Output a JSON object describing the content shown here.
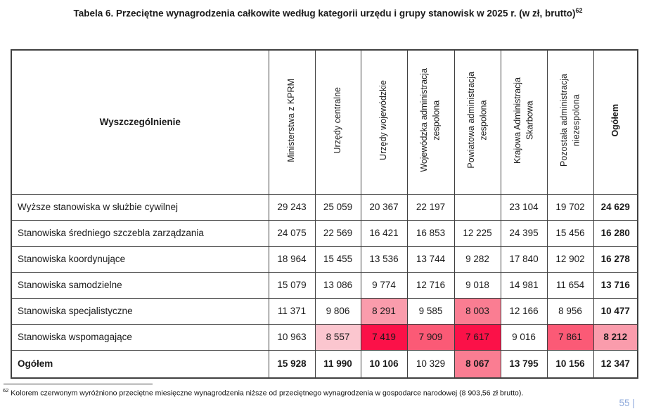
{
  "title": {
    "text": "Tabela 6. Przeciętne wynagrodzenia całkowite według kategorii urzędu i grupy stanowisk w 2025 r. (w zł, brutto)",
    "footnote_ref": "62"
  },
  "table": {
    "corner_label": "Wyszczególnienie",
    "columns": [
      {
        "label": "Ministerstwa z KPRM",
        "bold": false
      },
      {
        "label": "Urzędy centralne",
        "bold": false
      },
      {
        "label": "Urzędy wojewódzkie",
        "bold": false
      },
      {
        "label": "Wojewódzka administracja\nzespolona",
        "bold": false
      },
      {
        "label": "Powiatowa administracja\nzespolona",
        "bold": false
      },
      {
        "label": "Krajowa Administracja\nSkarbowa",
        "bold": false
      },
      {
        "label": "Pozostała administracja\nniezespolona",
        "bold": false
      },
      {
        "label": "Ogółem",
        "bold": true
      }
    ],
    "rows": [
      {
        "label": "Wyższe stanowiska w służbie cywilnej",
        "bold": false,
        "total_row": false,
        "cells": [
          {
            "v": "29 243"
          },
          {
            "v": "25 059"
          },
          {
            "v": "20 367"
          },
          {
            "v": "22 197"
          },
          {
            "v": ""
          },
          {
            "v": "23 104"
          },
          {
            "v": "19 702"
          },
          {
            "v": "24 629",
            "bold": true
          }
        ]
      },
      {
        "label": "Stanowiska średniego szczebla zarządzania",
        "bold": false,
        "total_row": false,
        "cells": [
          {
            "v": "24 075"
          },
          {
            "v": "22 569"
          },
          {
            "v": "16 421"
          },
          {
            "v": "16 853"
          },
          {
            "v": "12 225"
          },
          {
            "v": "24 395"
          },
          {
            "v": "15 456"
          },
          {
            "v": "16 280",
            "bold": true
          }
        ]
      },
      {
        "label": "Stanowiska koordynujące",
        "bold": false,
        "total_row": false,
        "cells": [
          {
            "v": "18 964"
          },
          {
            "v": "15 455"
          },
          {
            "v": "13 536"
          },
          {
            "v": "13 744"
          },
          {
            "v": "9 282"
          },
          {
            "v": "17 840"
          },
          {
            "v": "12 902"
          },
          {
            "v": "16 278",
            "bold": true
          }
        ]
      },
      {
        "label": "Stanowiska samodzielne",
        "bold": false,
        "total_row": false,
        "cells": [
          {
            "v": "15 079"
          },
          {
            "v": "13 086"
          },
          {
            "v": "9 774"
          },
          {
            "v": "12 716"
          },
          {
            "v": "9 018"
          },
          {
            "v": "14 981"
          },
          {
            "v": "11 654"
          },
          {
            "v": "13 716",
            "bold": true
          }
        ]
      },
      {
        "label": "Stanowiska specjalistyczne",
        "bold": false,
        "total_row": false,
        "cells": [
          {
            "v": "11 371"
          },
          {
            "v": "9 806"
          },
          {
            "v": "8 291",
            "hl": "pink_light"
          },
          {
            "v": "9 585"
          },
          {
            "v": "8 003",
            "hl": "pink_medium"
          },
          {
            "v": "12 166"
          },
          {
            "v": "8 956"
          },
          {
            "v": "10 477",
            "bold": true
          }
        ]
      },
      {
        "label": "Stanowiska wspomagające",
        "bold": false,
        "total_row": false,
        "cells": [
          {
            "v": "10 963"
          },
          {
            "v": "8 557",
            "hl": "pink_very_light"
          },
          {
            "v": "7 419",
            "hl": "red_strong"
          },
          {
            "v": "7 909",
            "hl": "red_medium"
          },
          {
            "v": "7 617",
            "hl": "red_strong"
          },
          {
            "v": "9 016"
          },
          {
            "v": "7 861",
            "hl": "red_medium"
          },
          {
            "v": "8 212",
            "bold": true,
            "hl": "pink_light"
          }
        ]
      },
      {
        "label": "Ogółem",
        "bold": true,
        "total_row": true,
        "cells": [
          {
            "v": "15 928",
            "bold": true
          },
          {
            "v": "11 990",
            "bold": true
          },
          {
            "v": "10 106",
            "bold": true
          },
          {
            "v": "10 329"
          },
          {
            "v": "8 067",
            "bold": true,
            "hl": "pink_medium"
          },
          {
            "v": "13 795",
            "bold": true
          },
          {
            "v": "10 156",
            "bold": true
          },
          {
            "v": "12 347",
            "bold": true
          }
        ]
      }
    ]
  },
  "colors": {
    "red_strong": "#fb1148",
    "red_medium": "#fb5a76",
    "pink_medium": "#fa7d92",
    "pink_light": "#fa9cac",
    "pink_very_light": "#fbc6cf",
    "page_number_blue": "#8ea9db"
  },
  "footnote": {
    "ref": "62",
    "text": "Kolorem czerwonym wyróżniono przeciętne miesięczne wynagrodzenia niższe od przeciętnego wynagrodzenia w gospodarce narodowej (8 903,56 zł brutto)."
  },
  "page_number": {
    "value": "55",
    "separator": "|"
  }
}
